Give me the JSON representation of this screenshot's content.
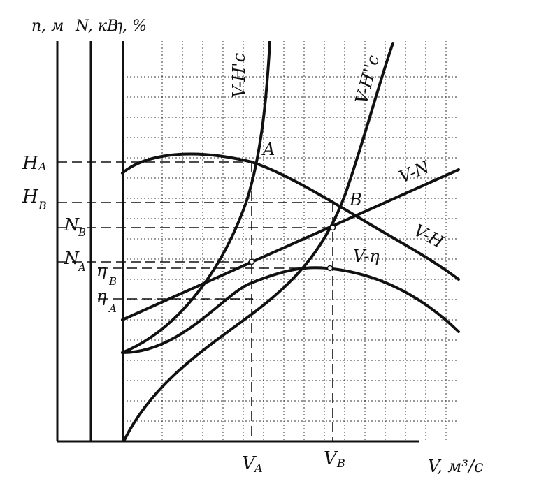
{
  "axis_labels": {
    "y1": "п, м",
    "y2": "N, кВ",
    "y3": "η, %",
    "x": "V, м³/с"
  },
  "y_ticks": {
    "HA": "H",
    "HA_sub": "A",
    "HB": "H",
    "HB_sub": "B",
    "NB": "N",
    "NB_sub": "B",
    "NA": "N",
    "NA_sub": "A",
    "etaB": "η",
    "etaB_sub": "B",
    "etaA": "η",
    "etaA_sub": "A"
  },
  "x_ticks": {
    "VA": "V",
    "VA_sub": "A",
    "VB": "V",
    "VB_sub": "B"
  },
  "points": {
    "A": "A",
    "B": "B"
  },
  "curve_labels": {
    "system_A": "V-H'c",
    "system_B": "V-H''c",
    "power": "V-N",
    "head": "V-H",
    "efficiency": "V-η"
  }
}
